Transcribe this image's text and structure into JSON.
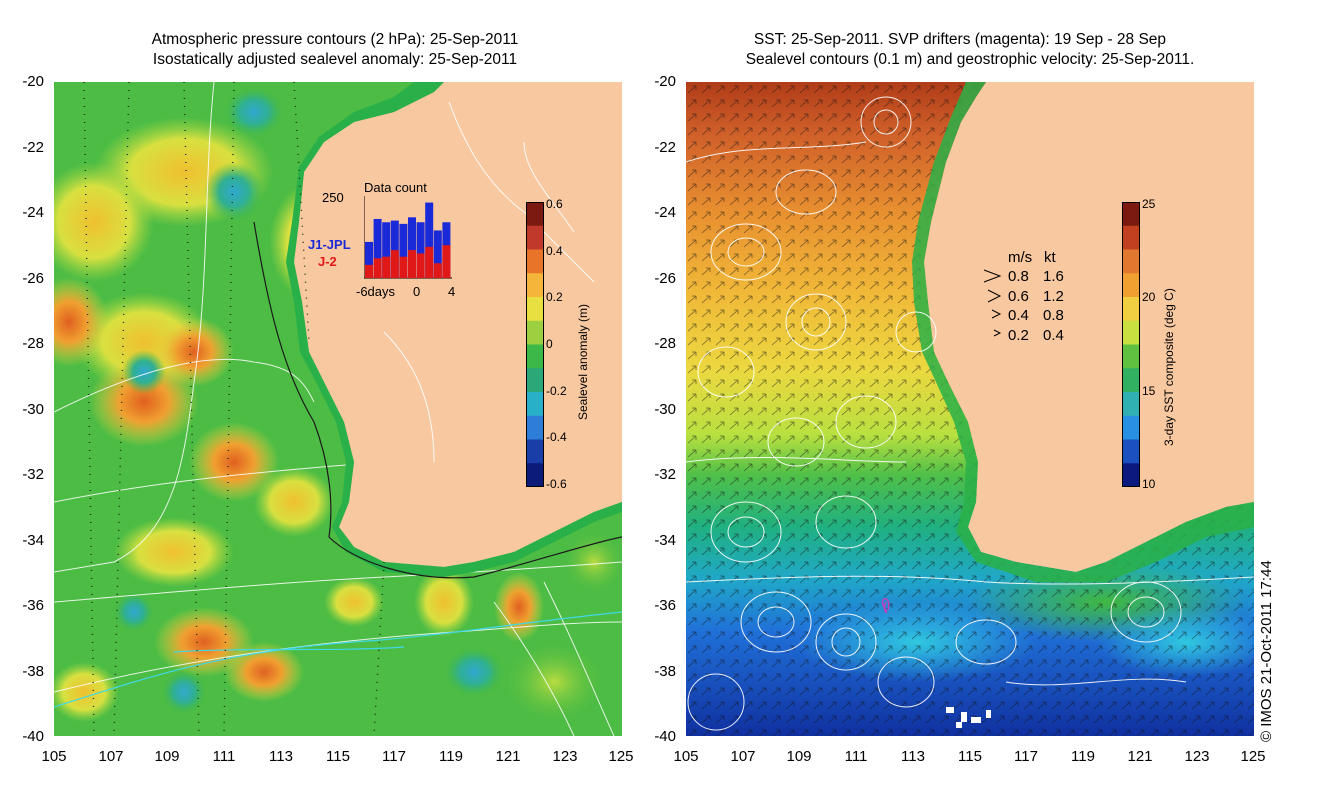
{
  "left_map": {
    "title_line1": "Atmospheric pressure contours (2 hPa): 25-Sep-2011",
    "title_line2": "Isostatically adjusted sealevel anomaly: 25-Sep-2011",
    "y_ticks": [
      "-20",
      "-22",
      "-24",
      "-26",
      "-28",
      "-30",
      "-32",
      "-34",
      "-36",
      "-38",
      "-40"
    ],
    "x_ticks": [
      "105",
      "107",
      "109",
      "111",
      "113",
      "115",
      "117",
      "119",
      "121",
      "123",
      "125"
    ],
    "colorbar": {
      "label": "Sealevel anomaly (m)",
      "ticks": [
        "0.6",
        "0.4",
        "0.2",
        "0",
        "-0.2",
        "-0.4",
        "-0.6"
      ],
      "colors": [
        "#7a1a10",
        "#c0392b",
        "#e8742a",
        "#f5b43a",
        "#e8e040",
        "#9cd040",
        "#3cb848",
        "#2aa878",
        "#28b0c8",
        "#2e7ed8",
        "#1a3ea8",
        "#0c1a78"
      ]
    },
    "inset": {
      "title": "Data count",
      "y_max": "250",
      "series": [
        "J1-JPL",
        "J-2"
      ],
      "x_ticks": [
        "-6days",
        "0",
        "4"
      ],
      "j1_counts": [
        110,
        180,
        170,
        175,
        165,
        185,
        170,
        230,
        145,
        170
      ],
      "j2_counts": [
        40,
        60,
        65,
        85,
        65,
        85,
        75,
        95,
        45,
        100
      ]
    }
  },
  "right_map": {
    "title_line1": "SST: 25-Sep-2011. SVP drifters (magenta): 19 Sep - 28 Sep",
    "title_line2": "Sealevel contours (0.1 m) and geostrophic velocity: 25-Sep-2011.",
    "y_ticks": [
      "-20",
      "-22",
      "-24",
      "-26",
      "-28",
      "-30",
      "-32",
      "-34",
      "-36",
      "-38",
      "-40"
    ],
    "x_ticks": [
      "105",
      "107",
      "109",
      "111",
      "113",
      "115",
      "117",
      "119",
      "121",
      "123",
      "125"
    ],
    "colorbar": {
      "label": "3-day SST composite (deg C)",
      "ticks": [
        "25",
        "20",
        "15",
        "10"
      ],
      "colors": [
        "#7a1a10",
        "#c04020",
        "#e07830",
        "#f0a030",
        "#f0d040",
        "#c8e040",
        "#60c040",
        "#30b060",
        "#30b0b0",
        "#2890e0",
        "#1a50c0",
        "#0c1a80"
      ]
    },
    "velocity_legend": {
      "header_ms": "m/s",
      "header_kt": "kt",
      "rows": [
        {
          "ms": "0.8",
          "kt": "1.6"
        },
        {
          "ms": "0.6",
          "kt": "1.2"
        },
        {
          "ms": "0.4",
          "kt": "0.8"
        },
        {
          "ms": "0.2",
          "kt": "0.4"
        }
      ]
    },
    "credit": "© IMOS 21-Oct-2011 17:44"
  },
  "palette": {
    "land": "#f8c8a0",
    "coast_green": "#2ab048",
    "j1_color": "#1a2ad8",
    "j2_color": "#e01818",
    "contour_white": "#ffffff",
    "drifter_magenta": "#c040c0"
  }
}
